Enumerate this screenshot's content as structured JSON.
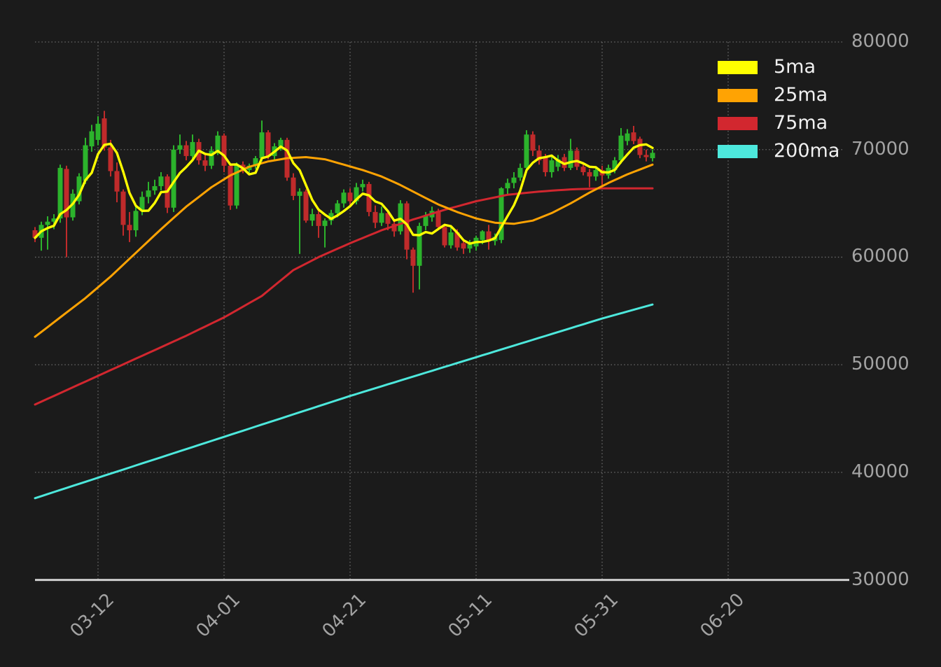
{
  "legend": {
    "items": [
      {
        "label": "5ma",
        "color": "#ffff00"
      },
      {
        "label": "25ma",
        "color": "#ffa303"
      },
      {
        "label": "75ma",
        "color": "#d2272f"
      },
      {
        "label": "200ma",
        "color": "#4de8dc"
      }
    ]
  },
  "chart_data": {
    "type": "candlestick",
    "title": "",
    "grid": true,
    "legend_position": "upper right",
    "colors": {
      "background": "#1b1b1b",
      "up_candle": "#2cb32c",
      "down_candle": "#c02b2b",
      "gridline": "#7a7a7a",
      "axis_line": "#cfcfcf",
      "tick_text": "#a3a3a3"
    },
    "y_axis": {
      "labels": [
        "80000",
        "70000",
        "60000",
        "50000",
        "40000",
        "30000"
      ],
      "values": [
        80000,
        70000,
        60000,
        50000,
        40000,
        30000
      ],
      "ylim": [
        30000,
        80000
      ]
    },
    "x_axis": {
      "ticks": [
        {
          "label": "03-12",
          "index": 10
        },
        {
          "label": "04-01",
          "index": 30
        },
        {
          "label": "04-21",
          "index": 50
        },
        {
          "label": "05-11",
          "index": 70
        },
        {
          "label": "05-31",
          "index": 90
        },
        {
          "label": "06-20",
          "index": 110
        }
      ]
    },
    "ohlc": [
      [
        62500,
        62800,
        61400,
        61800
      ],
      [
        61800,
        63300,
        60600,
        63000
      ],
      [
        63000,
        63800,
        60700,
        63300
      ],
      [
        63300,
        64000,
        62600,
        63600
      ],
      [
        63600,
        68600,
        63200,
        68300
      ],
      [
        68200,
        68500,
        60000,
        63700
      ],
      [
        63700,
        66300,
        63400,
        65900
      ],
      [
        65200,
        67800,
        64900,
        67500
      ],
      [
        67100,
        71100,
        66800,
        70400
      ],
      [
        70300,
        72300,
        69800,
        71700
      ],
      [
        70900,
        73100,
        70400,
        72400
      ],
      [
        72900,
        73600,
        69900,
        70200
      ],
      [
        70200,
        70900,
        67500,
        68000
      ],
      [
        68000,
        68800,
        65100,
        66100
      ],
      [
        66100,
        66300,
        62000,
        63000
      ],
      [
        63000,
        64200,
        61400,
        62500
      ],
      [
        62500,
        64800,
        61900,
        64300
      ],
      [
        64300,
        66100,
        63900,
        65600
      ],
      [
        65600,
        67000,
        65000,
        66200
      ],
      [
        66200,
        67200,
        65800,
        66600
      ],
      [
        66600,
        67900,
        66200,
        67500
      ],
      [
        67500,
        67700,
        64100,
        64600
      ],
      [
        64600,
        70400,
        64200,
        70000
      ],
      [
        70000,
        71400,
        69600,
        70400
      ],
      [
        70400,
        70800,
        69000,
        69400
      ],
      [
        69400,
        71400,
        68900,
        70700
      ],
      [
        70700,
        71000,
        68600,
        69000
      ],
      [
        69000,
        69600,
        68000,
        68500
      ],
      [
        68500,
        70300,
        68200,
        69900
      ],
      [
        69900,
        71700,
        69500,
        71300
      ],
      [
        71300,
        71500,
        67900,
        68500
      ],
      [
        68500,
        68700,
        64400,
        64800
      ],
      [
        64800,
        68800,
        64500,
        68600
      ],
      [
        68600,
        68900,
        67800,
        68100
      ],
      [
        68100,
        68700,
        67700,
        68500
      ],
      [
        68500,
        69400,
        68200,
        69200
      ],
      [
        69200,
        72700,
        68900,
        71600
      ],
      [
        71600,
        71800,
        69100,
        69400
      ],
      [
        69400,
        70600,
        69000,
        70300
      ],
      [
        70300,
        71100,
        69900,
        70900
      ],
      [
        70900,
        71100,
        67100,
        67400
      ],
      [
        67400,
        67800,
        65300,
        65700
      ],
      [
        65700,
        66400,
        60300,
        66100
      ],
      [
        66100,
        66300,
        63200,
        63400
      ],
      [
        63400,
        64500,
        62900,
        64000
      ],
      [
        64000,
        64300,
        61800,
        62900
      ],
      [
        62900,
        63600,
        60900,
        63400
      ],
      [
        63400,
        64400,
        63000,
        64100
      ],
      [
        64100,
        65300,
        63700,
        65000
      ],
      [
        65000,
        66300,
        64600,
        66000
      ],
      [
        66000,
        66400,
        64800,
        65200
      ],
      [
        65200,
        66900,
        64900,
        66500
      ],
      [
        66500,
        67200,
        66100,
        66800
      ],
      [
        66800,
        67000,
        63800,
        64200
      ],
      [
        64200,
        64800,
        62700,
        63200
      ],
      [
        63200,
        64700,
        62900,
        64100
      ],
      [
        64100,
        64400,
        62500,
        63100
      ],
      [
        63100,
        63500,
        61900,
        62400
      ],
      [
        62400,
        65300,
        62100,
        65000
      ],
      [
        65000,
        65200,
        59800,
        60700
      ],
      [
        60700,
        60900,
        56700,
        59200
      ],
      [
        59200,
        63200,
        57000,
        62900
      ],
      [
        62900,
        64200,
        62500,
        63900
      ],
      [
        63700,
        64700,
        63300,
        64300
      ],
      [
        64300,
        64500,
        62600,
        62800
      ],
      [
        62800,
        63100,
        60900,
        61100
      ],
      [
        61100,
        62800,
        60800,
        62300
      ],
      [
        62300,
        62600,
        60600,
        60900
      ],
      [
        61300,
        61500,
        60300,
        60800
      ],
      [
        60800,
        61600,
        60400,
        61200
      ],
      [
        61000,
        62000,
        60600,
        61800
      ],
      [
        61600,
        62500,
        61200,
        62400
      ],
      [
        62400,
        63000,
        60700,
        61500
      ],
      [
        61500,
        62200,
        61100,
        61900
      ],
      [
        61600,
        66500,
        61300,
        66400
      ],
      [
        66400,
        67300,
        65800,
        66900
      ],
      [
        66900,
        67900,
        66400,
        67400
      ],
      [
        67400,
        68700,
        67100,
        68300
      ],
      [
        68300,
        71800,
        68000,
        71400
      ],
      [
        71400,
        71700,
        69400,
        69900
      ],
      [
        69900,
        70400,
        68600,
        69000
      ],
      [
        69300,
        69600,
        67500,
        67900
      ],
      [
        67900,
        69400,
        67400,
        69000
      ],
      [
        68400,
        69500,
        68000,
        69100
      ],
      [
        69300,
        69600,
        68000,
        68300
      ],
      [
        68300,
        71000,
        68100,
        69900
      ],
      [
        69900,
        70200,
        68100,
        68400
      ],
      [
        68400,
        68800,
        67600,
        67900
      ],
      [
        67900,
        68200,
        66500,
        67500
      ],
      [
        67500,
        68400,
        67100,
        68100
      ],
      [
        68100,
        68500,
        66700,
        67600
      ],
      [
        67600,
        68600,
        67300,
        68300
      ],
      [
        68100,
        69300,
        67800,
        69000
      ],
      [
        69000,
        72000,
        68700,
        71300
      ],
      [
        70800,
        71900,
        70400,
        71500
      ],
      [
        71600,
        72200,
        70500,
        70800
      ],
      [
        71000,
        71200,
        69200,
        69500
      ],
      [
        69500,
        70000,
        68900,
        69300
      ],
      [
        69200,
        70000,
        68900,
        69700
      ]
    ],
    "series": [
      {
        "name": "5ma",
        "color": "#ffff00",
        "derived": "sma5_of_close"
      },
      {
        "name": "25ma",
        "color": "#ffa303",
        "knots": [
          [
            0,
            52600
          ],
          [
            4,
            54400
          ],
          [
            8,
            56200
          ],
          [
            12,
            58200
          ],
          [
            16,
            60400
          ],
          [
            20,
            62600
          ],
          [
            24,
            64700
          ],
          [
            28,
            66500
          ],
          [
            31,
            67600
          ],
          [
            34,
            68400
          ],
          [
            37,
            68900
          ],
          [
            40,
            69200
          ],
          [
            43,
            69300
          ],
          [
            46,
            69100
          ],
          [
            49,
            68600
          ],
          [
            52,
            68100
          ],
          [
            55,
            67500
          ],
          [
            58,
            66700
          ],
          [
            61,
            65800
          ],
          [
            64,
            64900
          ],
          [
            67,
            64200
          ],
          [
            70,
            63600
          ],
          [
            73,
            63200
          ],
          [
            76,
            63100
          ],
          [
            79,
            63400
          ],
          [
            82,
            64100
          ],
          [
            85,
            65000
          ],
          [
            88,
            66000
          ],
          [
            91,
            66900
          ],
          [
            94,
            67700
          ],
          [
            98,
            68600
          ]
        ]
      },
      {
        "name": "75ma",
        "color": "#d2272f",
        "knots": [
          [
            0,
            46300
          ],
          [
            6,
            47900
          ],
          [
            12,
            49500
          ],
          [
            18,
            51100
          ],
          [
            24,
            52700
          ],
          [
            30,
            54400
          ],
          [
            36,
            56400
          ],
          [
            41,
            58800
          ],
          [
            45,
            60000
          ],
          [
            50,
            61300
          ],
          [
            55,
            62500
          ],
          [
            60,
            63500
          ],
          [
            65,
            64400
          ],
          [
            70,
            65200
          ],
          [
            75,
            65800
          ],
          [
            80,
            66100
          ],
          [
            85,
            66300
          ],
          [
            90,
            66400
          ],
          [
            98,
            66400
          ]
        ]
      },
      {
        "name": "200ma",
        "color": "#4de8dc",
        "knots": [
          [
            0,
            37600
          ],
          [
            10,
            39500
          ],
          [
            20,
            41400
          ],
          [
            30,
            43300
          ],
          [
            40,
            45200
          ],
          [
            50,
            47100
          ],
          [
            60,
            48900
          ],
          [
            70,
            50700
          ],
          [
            80,
            52500
          ],
          [
            90,
            54300
          ],
          [
            98,
            55600
          ]
        ]
      }
    ]
  }
}
